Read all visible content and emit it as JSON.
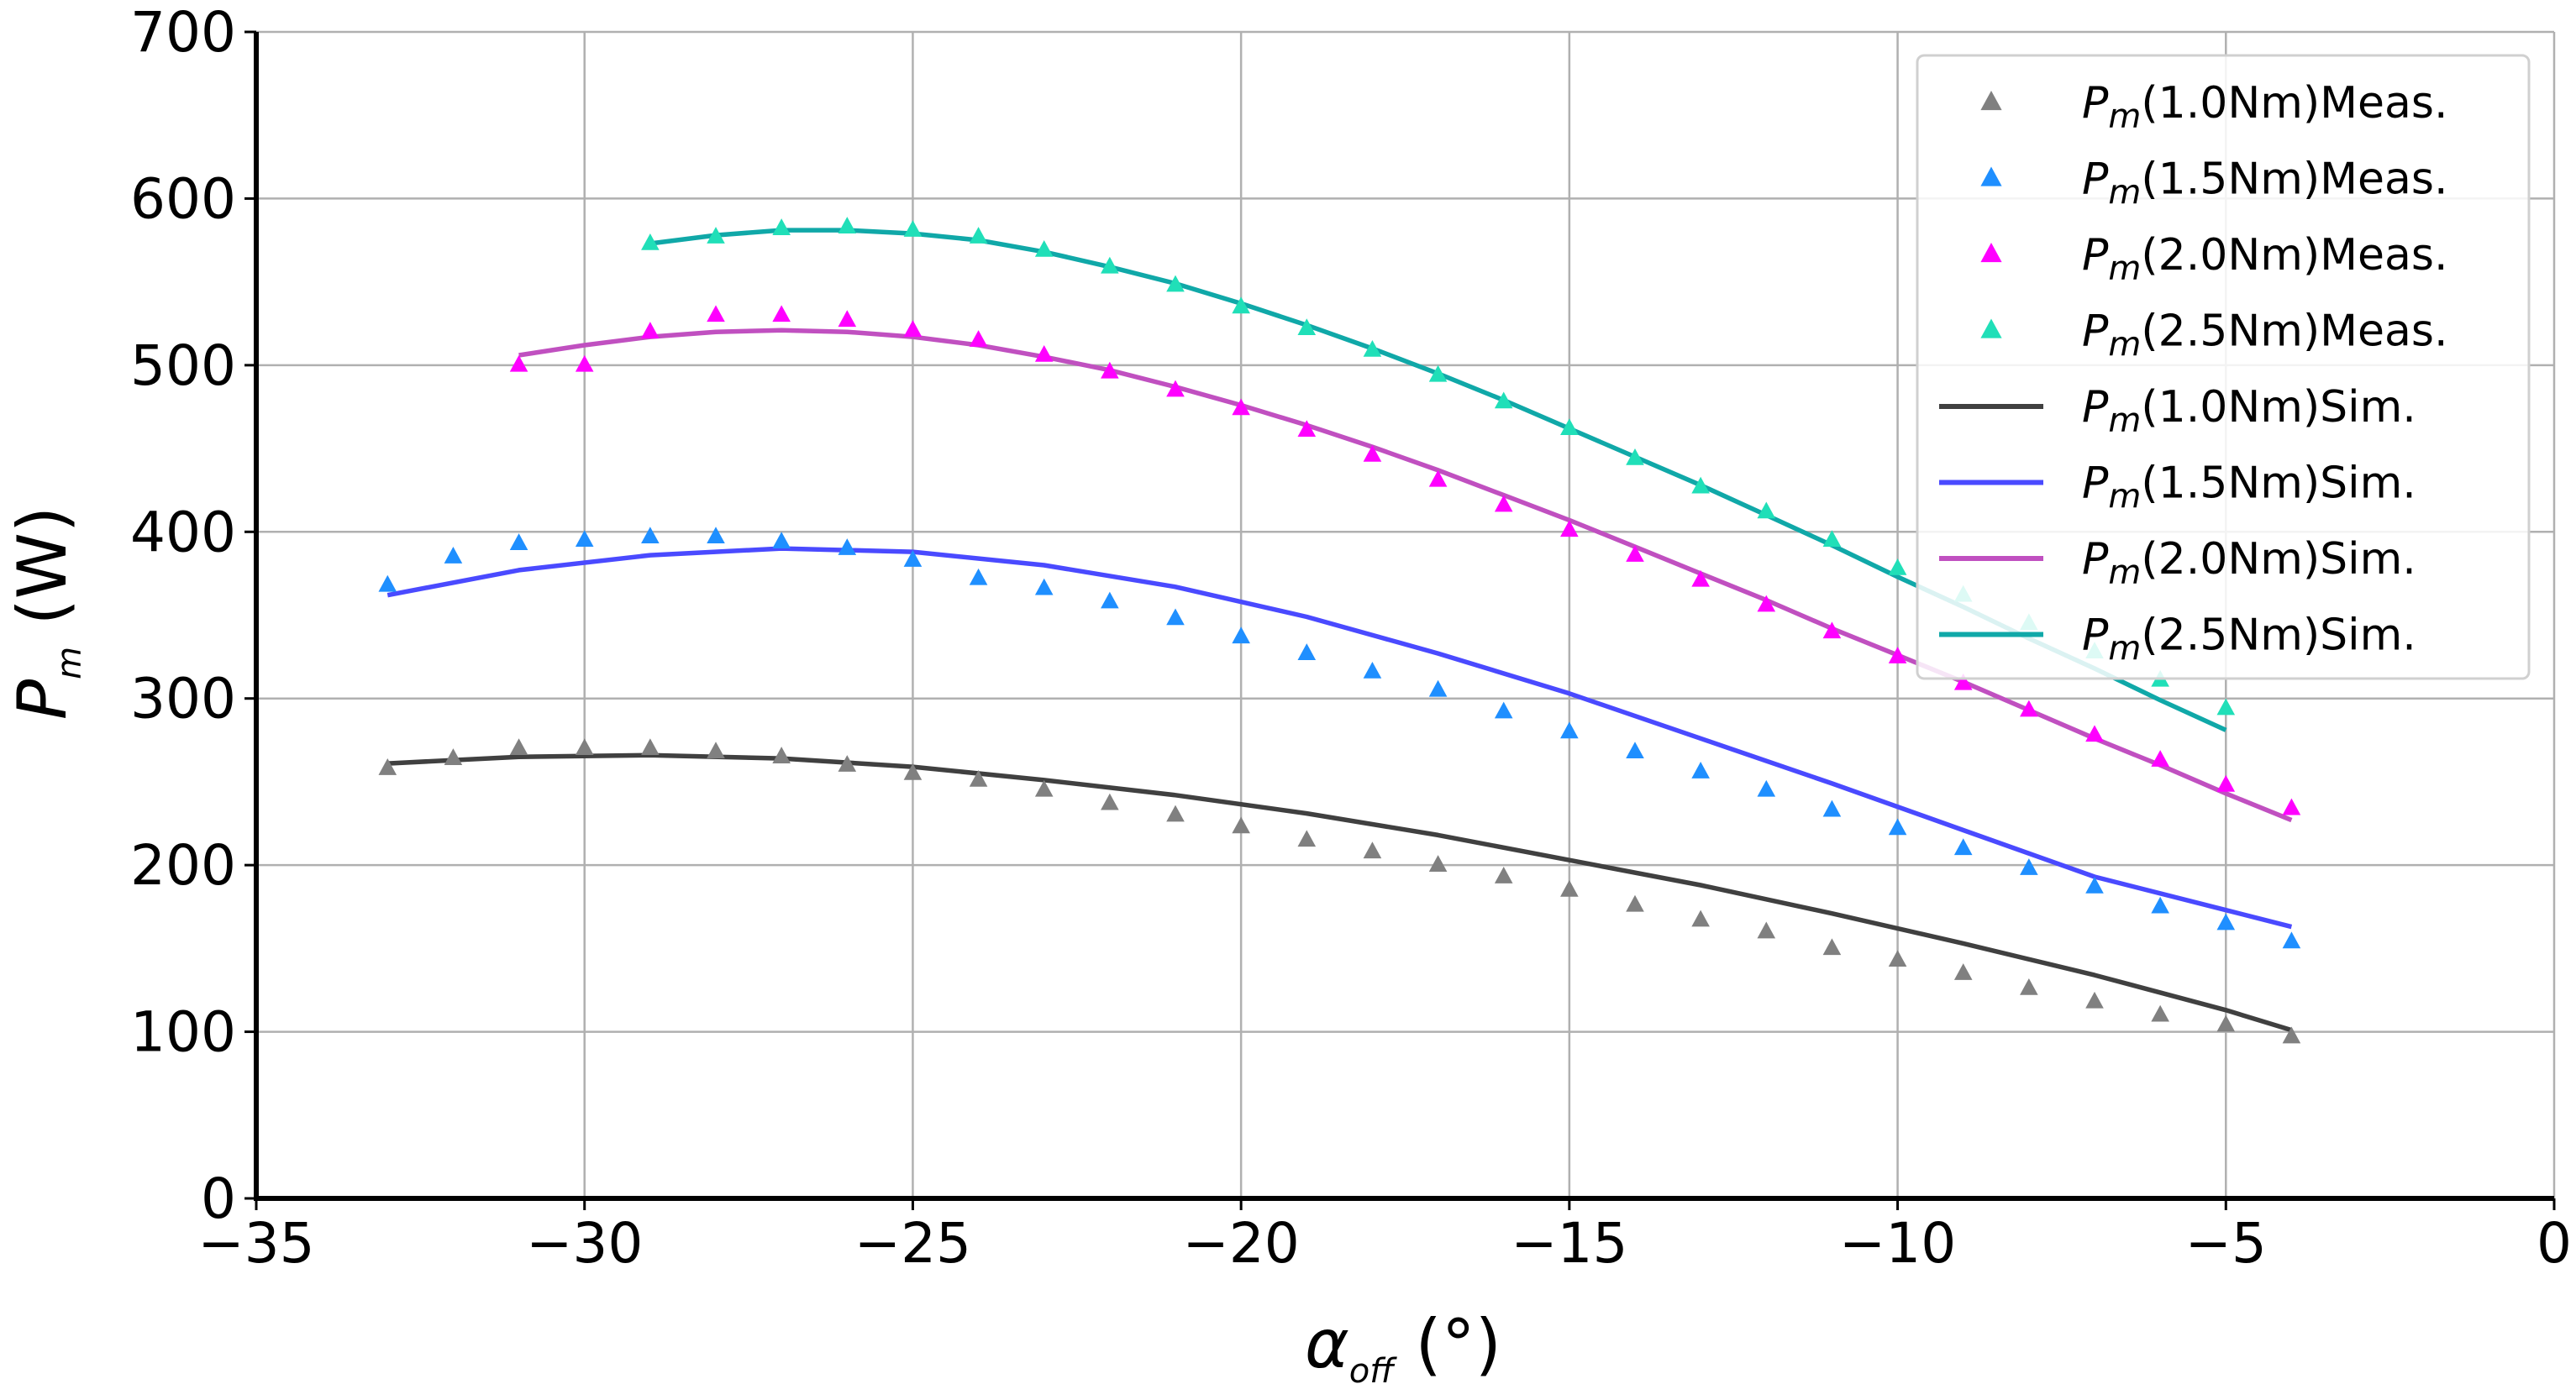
{
  "chart_data": {
    "type": "scatter+line",
    "xlabel": "α",
    "xlabel_sub": "off",
    "xlabel_unit": " (°)",
    "ylabel": "P",
    "ylabel_sub": "m",
    "ylabel_unit": " (W)",
    "xlim": [
      -35,
      0
    ],
    "ylim": [
      0,
      700
    ],
    "xticks": [
      -35,
      -30,
      -25,
      -20,
      -15,
      -10,
      -5,
      0
    ],
    "yticks": [
      0,
      100,
      200,
      300,
      400,
      500,
      600,
      700
    ],
    "xtick_labels": [
      "−35",
      "−30",
      "−25",
      "−20",
      "−15",
      "−10",
      "−5",
      "0"
    ],
    "ytick_labels": [
      "0",
      "100",
      "200",
      "300",
      "400",
      "500",
      "600",
      "700"
    ],
    "grid": true,
    "legend_position": "top-right",
    "measured": [
      {
        "name": "P_m(1.0Nm)Meas.",
        "prefix": "P",
        "sub": "m",
        "suffix": "(1.0Nm)Meas.",
        "color": "#808080",
        "x": [
          -33,
          -32,
          -31,
          -30,
          -29,
          -28,
          -27,
          -26,
          -25,
          -24,
          -23,
          -22,
          -21,
          -20,
          -19,
          -18,
          -17,
          -16,
          -15,
          -14,
          -13,
          -12,
          -11,
          -10,
          -9,
          -8,
          -7,
          -6,
          -5,
          -4
        ],
        "y": [
          258,
          264,
          270,
          270,
          270,
          268,
          265,
          260,
          255,
          251,
          245,
          237,
          230,
          223,
          215,
          208,
          200,
          193,
          185,
          176,
          167,
          160,
          150,
          143,
          135,
          126,
          118,
          110,
          104,
          97
        ]
      },
      {
        "name": "P_m(1.5Nm)Meas.",
        "prefix": "P",
        "sub": "m",
        "suffix": "(1.5Nm)Meas.",
        "color": "#1f8fff",
        "x": [
          -33,
          -32,
          -31,
          -30,
          -29,
          -28,
          -27,
          -26,
          -25,
          -24,
          -23,
          -22,
          -21,
          -20,
          -19,
          -18,
          -17,
          -16,
          -15,
          -14,
          -13,
          -12,
          -11,
          -10,
          -9,
          -8,
          -7,
          -6,
          -5,
          -4
        ],
        "y": [
          368,
          385,
          393,
          395,
          397,
          397,
          394,
          390,
          383,
          372,
          366,
          358,
          348,
          337,
          327,
          316,
          305,
          292,
          280,
          268,
          256,
          245,
          233,
          222,
          210,
          198,
          187,
          175,
          165,
          154
        ]
      },
      {
        "name": "P_m(2.0Nm)Meas.",
        "prefix": "P",
        "sub": "m",
        "suffix": "(2.0Nm)Meas.",
        "color": "#ff00ff",
        "x": [
          -31,
          -30,
          -29,
          -28,
          -27,
          -26,
          -25,
          -24,
          -23,
          -22,
          -21,
          -20,
          -19,
          -18,
          -17,
          -16,
          -15,
          -14,
          -13,
          -12,
          -11,
          -10,
          -9,
          -8,
          -7,
          -6,
          -5,
          -4
        ],
        "y": [
          500,
          500,
          520,
          530,
          530,
          527,
          521,
          515,
          506,
          496,
          485,
          474,
          461,
          446,
          431,
          416,
          401,
          386,
          371,
          356,
          340,
          325,
          309,
          293,
          278,
          263,
          248,
          234
        ]
      },
      {
        "name": "P_m(2.5Nm)Meas.",
        "prefix": "P",
        "sub": "m",
        "suffix": "(2.5Nm)Meas.",
        "color": "#20dfb8",
        "x": [
          -29,
          -28,
          -27,
          -26,
          -25,
          -24,
          -23,
          -22,
          -21,
          -20,
          -19,
          -18,
          -17,
          -16,
          -15,
          -14,
          -13,
          -12,
          -11,
          -10,
          -9,
          -8,
          -7,
          -6,
          -5
        ],
        "y": [
          573,
          577,
          582,
          583,
          581,
          577,
          569,
          559,
          548,
          535,
          522,
          509,
          494,
          478,
          462,
          444,
          427,
          412,
          395,
          378,
          362,
          345,
          328,
          311,
          294
        ]
      }
    ],
    "simulated": [
      {
        "name": "P_m(1.0Nm)Sim.",
        "prefix": "P",
        "sub": "m",
        "suffix": "(1.0Nm)Sim.",
        "color": "#404040",
        "x": [
          -33,
          -31,
          -29,
          -27,
          -25,
          -23,
          -21,
          -19,
          -17,
          -15,
          -13,
          -11,
          -9,
          -7,
          -5,
          -4
        ],
        "y": [
          261,
          265,
          266,
          264,
          259,
          251,
          242,
          231,
          218,
          203,
          188,
          171,
          153,
          134,
          113,
          101
        ]
      },
      {
        "name": "P_m(1.5Nm)Sim.",
        "prefix": "P",
        "sub": "m",
        "suffix": "(1.5Nm)Sim.",
        "color": "#4a4aff",
        "x": [
          -33,
          -31,
          -29,
          -27,
          -25,
          -23,
          -21,
          -19,
          -17,
          -15,
          -13,
          -11,
          -9,
          -7,
          -5,
          -4
        ],
        "y": [
          362,
          377,
          386,
          390,
          388,
          380,
          367,
          349,
          327,
          303,
          276,
          249,
          221,
          193,
          173,
          163
        ]
      },
      {
        "name": "P_m(2.0Nm)Sim.",
        "prefix": "P",
        "sub": "m",
        "suffix": "(2.0Nm)Sim.",
        "color": "#c050c0",
        "x": [
          -31,
          -30,
          -29,
          -28,
          -27,
          -26,
          -25,
          -24,
          -23,
          -22,
          -21,
          -20,
          -19,
          -18,
          -17,
          -16,
          -15,
          -14,
          -13,
          -12,
          -11,
          -10,
          -9,
          -8,
          -7,
          -6,
          -5,
          -4
        ],
        "y": [
          506,
          512,
          517,
          520,
          521,
          520,
          517,
          512,
          505,
          497,
          487,
          476,
          464,
          451,
          437,
          422,
          407,
          391,
          375,
          359,
          342,
          326,
          310,
          293,
          276,
          260,
          243,
          227
        ]
      },
      {
        "name": "P_m(2.5Nm)Sim.",
        "prefix": "P",
        "sub": "m",
        "suffix": "(2.5Nm)Sim.",
        "color": "#10a8a8",
        "x": [
          -29,
          -28,
          -27,
          -26,
          -25,
          -24,
          -23,
          -22,
          -21,
          -20,
          -19,
          -18,
          -17,
          -16,
          -15,
          -14,
          -13,
          -12,
          -11,
          -10,
          -9,
          -8,
          -7,
          -6,
          -5
        ],
        "y": [
          573,
          578,
          581,
          581,
          579,
          575,
          568,
          559,
          549,
          537,
          524,
          510,
          495,
          479,
          462,
          445,
          428,
          410,
          392,
          373,
          355,
          336,
          318,
          299,
          281
        ]
      }
    ]
  }
}
